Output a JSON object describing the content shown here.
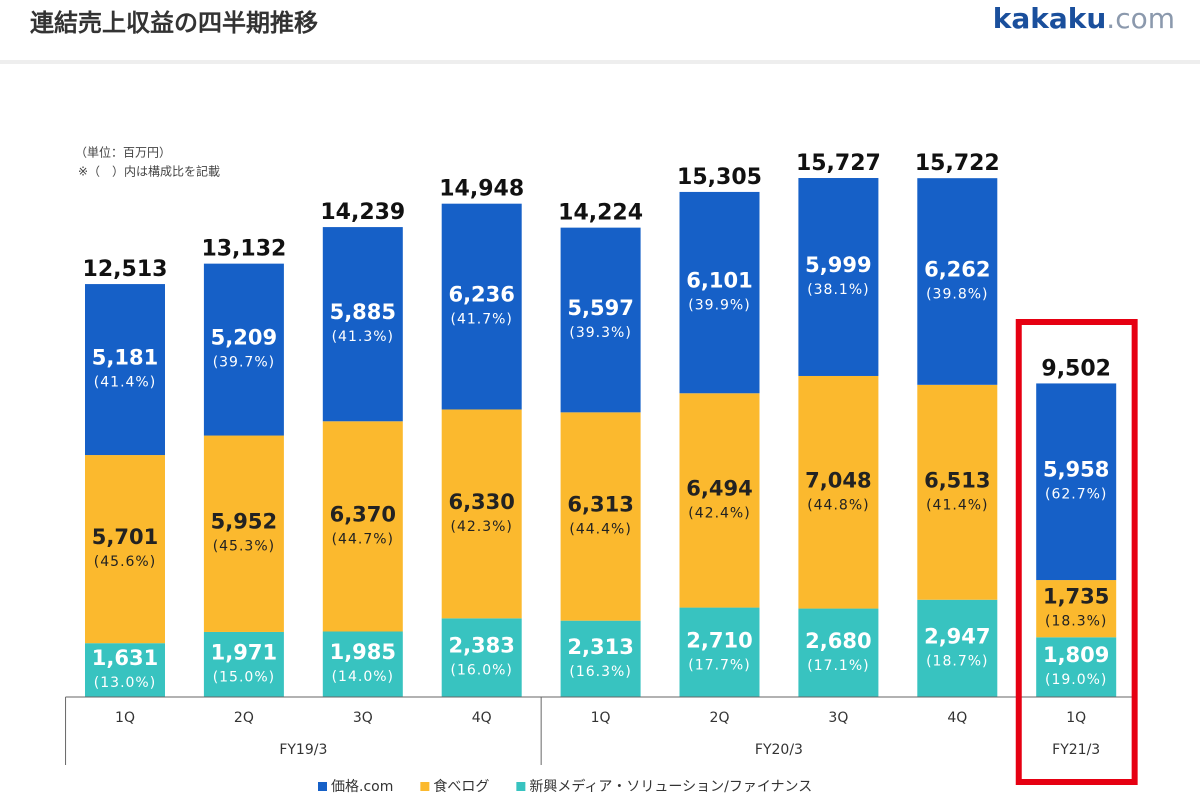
{
  "header": {
    "title": "連結売上収益の四半期推移",
    "logo": {
      "name": "kakaku",
      "suffix": ".com"
    }
  },
  "chart_data": {
    "type": "stacked-bar",
    "notes": [
      "（単位：百万円）",
      "※（　）内は構成比を記載"
    ],
    "groups": [
      {
        "label": "FY19/3",
        "categories": [
          "1Q",
          "2Q",
          "3Q",
          "4Q"
        ]
      },
      {
        "label": "FY20/3",
        "categories": [
          "1Q",
          "2Q",
          "3Q",
          "4Q"
        ]
      },
      {
        "label": "FY21/3",
        "categories": [
          "1Q"
        ]
      }
    ],
    "series": [
      {
        "name": "新興メディア・ソリューション/ファイナンス",
        "color": "#38c3c0",
        "label_color": "#ffffff",
        "values": [
          1631,
          1971,
          1985,
          2383,
          2313,
          2710,
          2680,
          2947,
          1809
        ],
        "value_labels": [
          "1,631",
          "1,971",
          "1,985",
          "2,383",
          "2,313",
          "2,710",
          "2,680",
          "2,947",
          "1,809"
        ],
        "share_labels": [
          "(13.0%)",
          "(15.0%)",
          "(14.0%)",
          "(16.0%)",
          "(16.3%)",
          "(17.7%)",
          "(17.1%)",
          "(18.7%)",
          "(19.0%)"
        ]
      },
      {
        "name": "食べログ",
        "color": "#fbb92e",
        "label_color": "#222222",
        "values": [
          5701,
          5952,
          6370,
          6330,
          6313,
          6494,
          7048,
          6513,
          1735
        ],
        "value_labels": [
          "5,701",
          "5,952",
          "6,370",
          "6,330",
          "6,313",
          "6,494",
          "7,048",
          "6,513",
          "1,735"
        ],
        "share_labels": [
          "(45.6%)",
          "(45.3%)",
          "(44.7%)",
          "(42.3%)",
          "(44.4%)",
          "(42.4%)",
          "(44.8%)",
          "(41.4%)",
          "(18.3%)"
        ]
      },
      {
        "name": "価格.com",
        "color": "#1660c7",
        "label_color": "#ffffff",
        "values": [
          5181,
          5209,
          5885,
          6236,
          5597,
          6101,
          5999,
          6262,
          5958
        ],
        "value_labels": [
          "5,181",
          "5,209",
          "5,885",
          "6,236",
          "5,597",
          "6,101",
          "5,999",
          "6,262",
          "5,958"
        ],
        "share_labels": [
          "(41.4%)",
          "(39.7%)",
          "(41.3%)",
          "(41.7%)",
          "(39.3%)",
          "(39.9%)",
          "(38.1%)",
          "(39.8%)",
          "(62.7%)"
        ]
      }
    ],
    "totals": [
      12513,
      13132,
      14239,
      14948,
      14224,
      15305,
      15727,
      15722,
      9502
    ],
    "total_labels": [
      "12,513",
      "13,132",
      "14,239",
      "14,948",
      "14,224",
      "15,305",
      "15,727",
      "15,722",
      "9,502"
    ],
    "legend_order": [
      2,
      1,
      0
    ]
  }
}
